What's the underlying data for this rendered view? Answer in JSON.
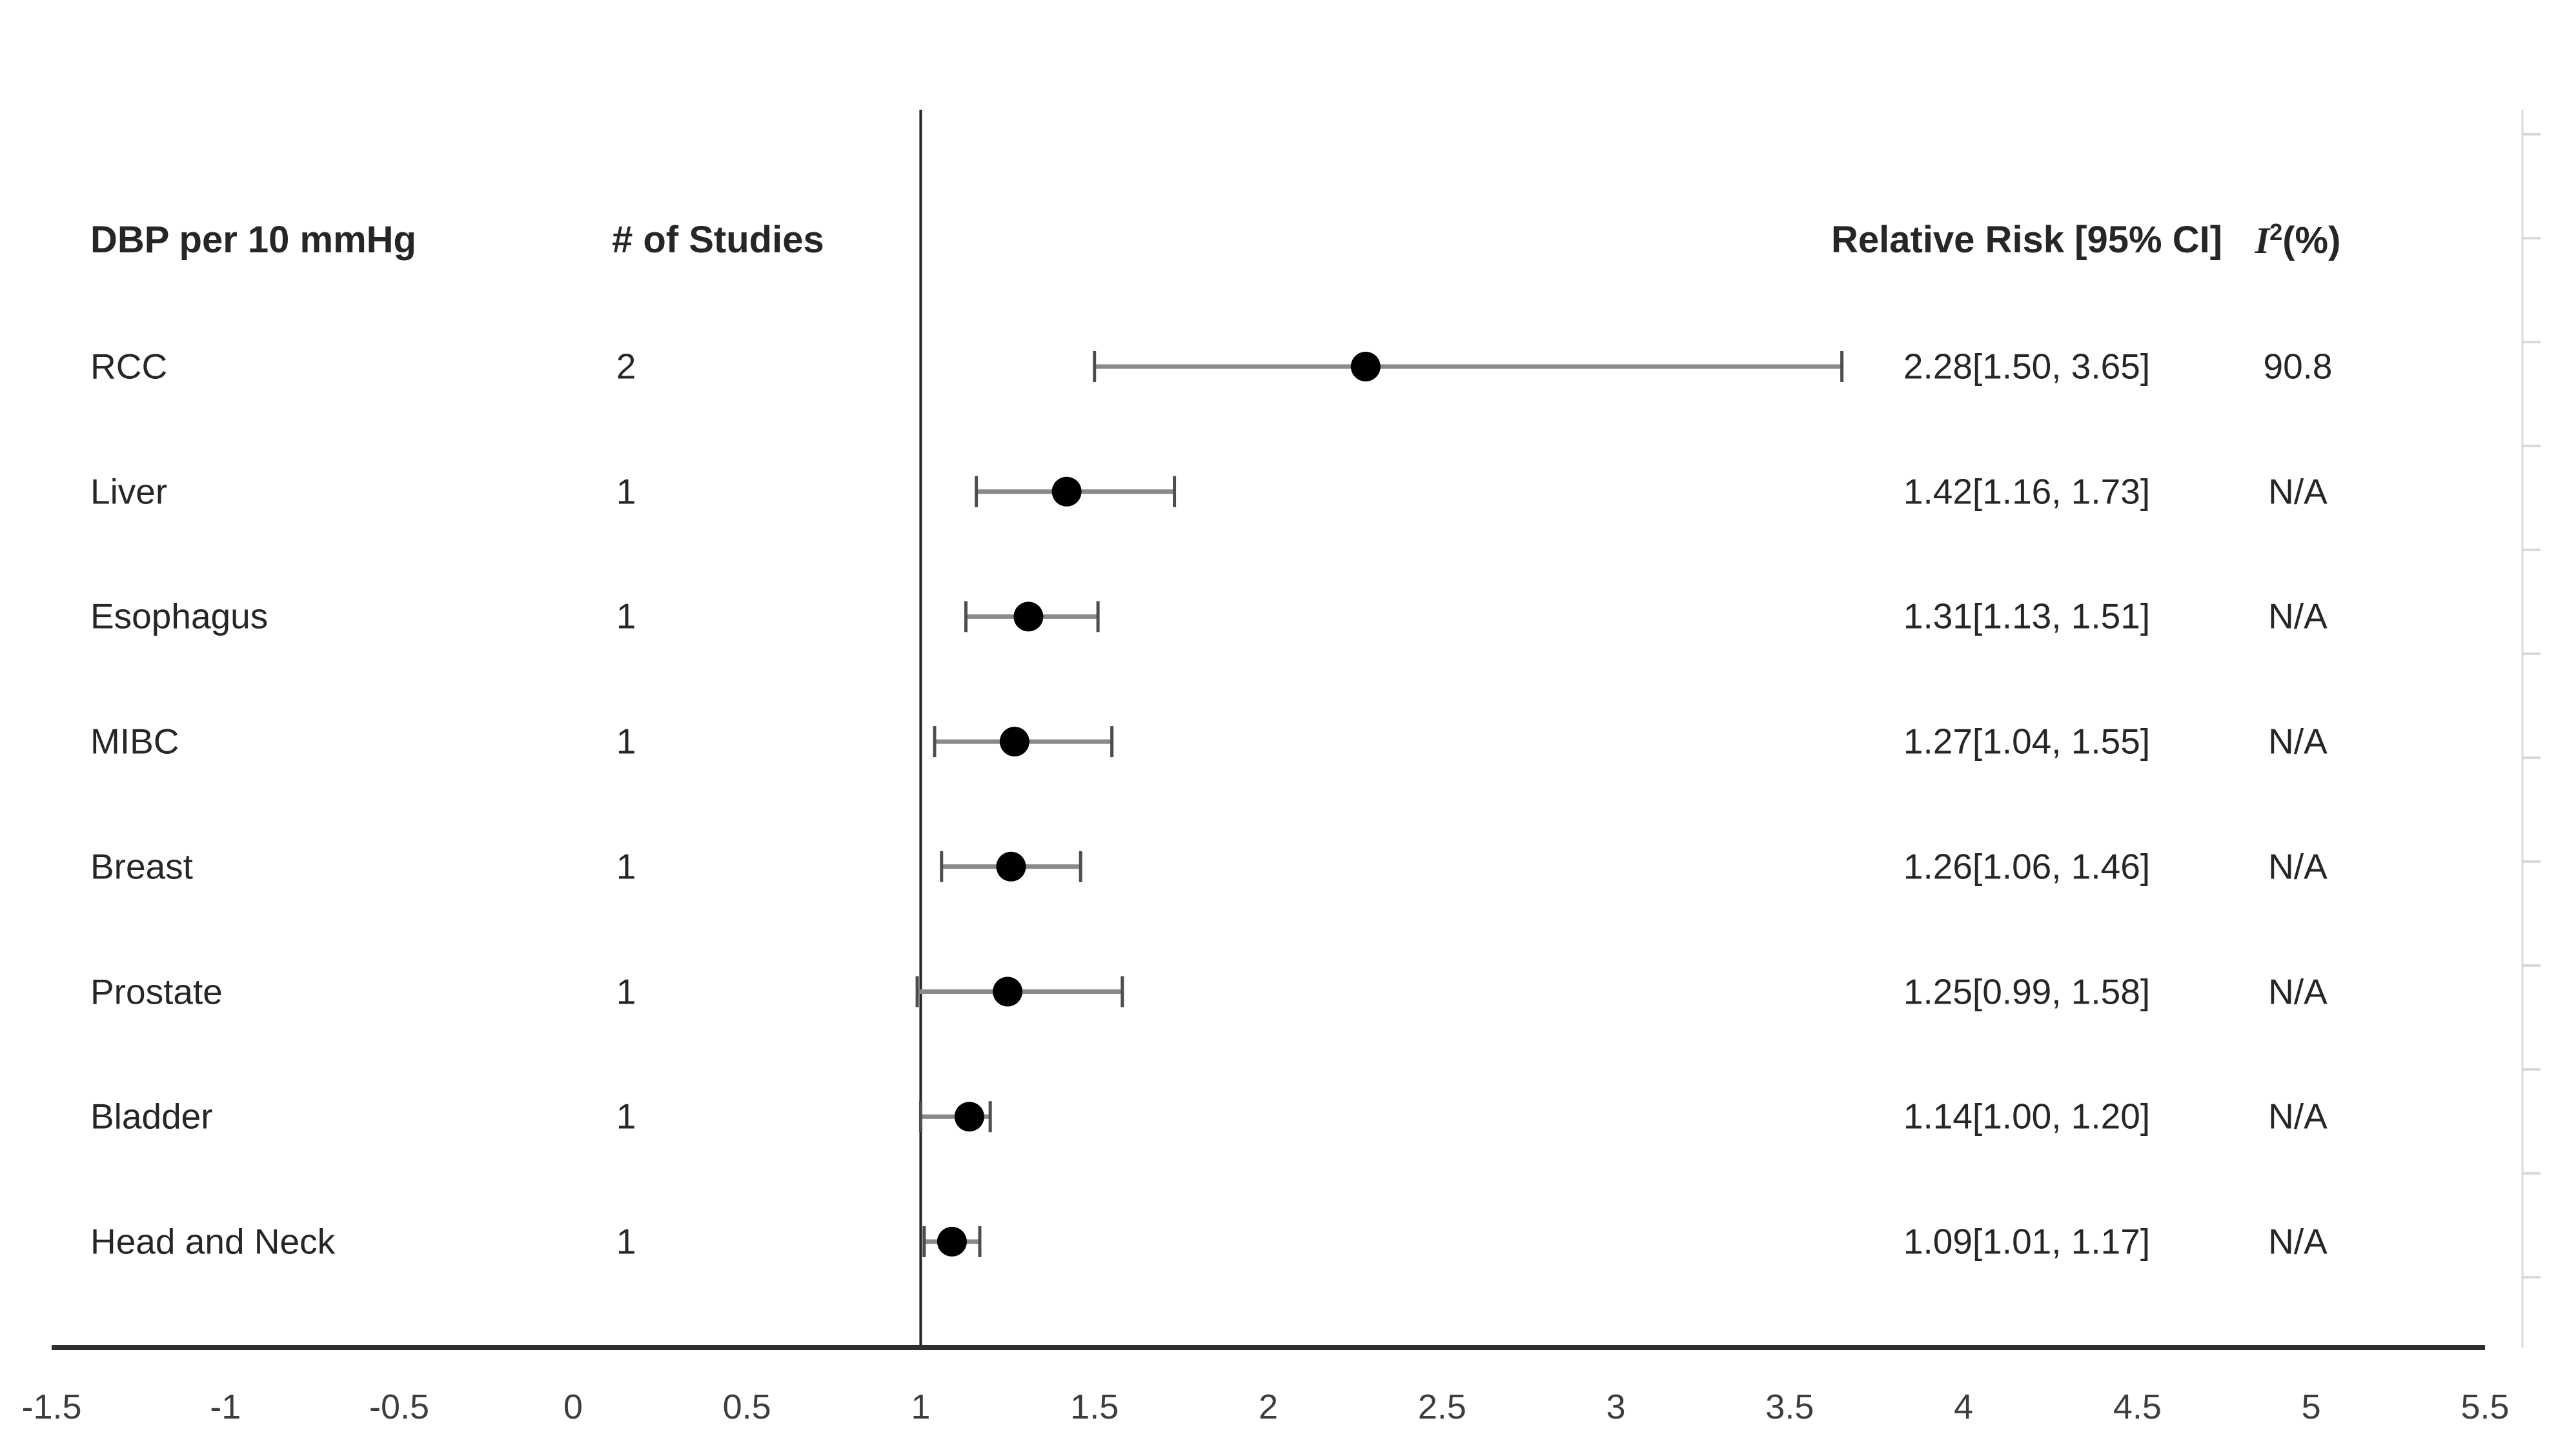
{
  "chart_data": {
    "type": "scatter",
    "variant": "forest-plot",
    "headers": {
      "label": "DBP per 10 mmHg",
      "studies": "# of Studies",
      "rr": "Relative Risk [95% CI]",
      "i2": {
        "base": "I",
        "sup": "2",
        "suffix": "(%)"
      }
    },
    "rows": [
      {
        "label": "RCC",
        "studies": "2",
        "rr": 2.28,
        "ci_low": 1.5,
        "ci_high": 3.65,
        "rr_text": "2.28[1.50, 3.65]",
        "i2": "90.8"
      },
      {
        "label": "Liver",
        "studies": "1",
        "rr": 1.42,
        "ci_low": 1.16,
        "ci_high": 1.73,
        "rr_text": "1.42[1.16, 1.73]",
        "i2": "N/A"
      },
      {
        "label": "Esophagus",
        "studies": "1",
        "rr": 1.31,
        "ci_low": 1.13,
        "ci_high": 1.51,
        "rr_text": "1.31[1.13, 1.51]",
        "i2": "N/A"
      },
      {
        "label": "MIBC",
        "studies": "1",
        "rr": 1.27,
        "ci_low": 1.04,
        "ci_high": 1.55,
        "rr_text": "1.27[1.04, 1.55]",
        "i2": "N/A"
      },
      {
        "label": "Breast",
        "studies": "1",
        "rr": 1.26,
        "ci_low": 1.06,
        "ci_high": 1.46,
        "rr_text": "1.26[1.06, 1.46]",
        "i2": "N/A"
      },
      {
        "label": "Prostate",
        "studies": "1",
        "rr": 1.25,
        "ci_low": 0.99,
        "ci_high": 1.58,
        "rr_text": "1.25[0.99, 1.58]",
        "i2": "N/A"
      },
      {
        "label": "Bladder",
        "studies": "1",
        "rr": 1.14,
        "ci_low": 1.0,
        "ci_high": 1.2,
        "rr_text": "1.14[1.00, 1.20]",
        "i2": "N/A"
      },
      {
        "label": "Head and Neck",
        "studies": "1",
        "rr": 1.09,
        "ci_low": 1.01,
        "ci_high": 1.17,
        "rr_text": "1.09[1.01, 1.17]",
        "i2": "N/A"
      }
    ],
    "x_axis": {
      "min": -1.5,
      "max": 5.5,
      "tick_labels": [
        "-1.5",
        "-1",
        "-0.5",
        "0",
        "0.5",
        "1",
        "1.5",
        "2",
        "2.5",
        "3",
        "3.5",
        "4",
        "4.5",
        "5",
        "5.5"
      ],
      "tick_values": [
        -1.5,
        -1,
        -0.5,
        0,
        0.5,
        1,
        1.5,
        2,
        2.5,
        3,
        3.5,
        4,
        4.5,
        5,
        5.5
      ],
      "reference_value": 1,
      "grid": "off",
      "legend": "none"
    },
    "colors": {
      "background": "#ffffff",
      "text": "#262626",
      "tick_text": "#3d3d3d",
      "axis_line": "#2f2f2f",
      "reference_line": "#262626",
      "whisker_line": "#8a8a8a",
      "whisker_cap": "#4d4d4d",
      "marker": "#000000",
      "faint_edge_axis": "#d9d9d9"
    }
  }
}
